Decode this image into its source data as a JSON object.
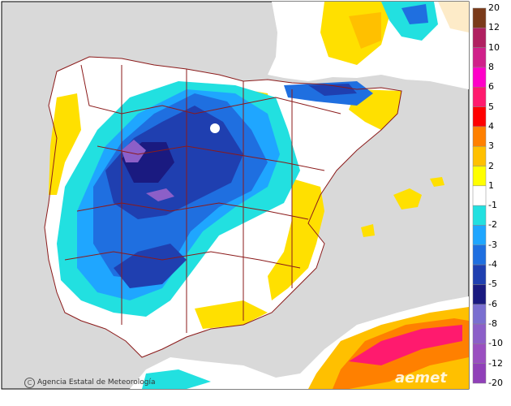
{
  "map": {
    "credit_symbol": "C",
    "credit_text": "Agencia Estatal de Meteorología",
    "brand_text": "aemet",
    "colors": {
      "sea": "#d9d9d9",
      "land_neutral": "#ffffff",
      "border": "#8b1a1a"
    }
  },
  "legend": {
    "ticks": [
      "20",
      "12",
      "10",
      "8",
      "6",
      "5",
      "4",
      "3",
      "2",
      "1",
      "-1",
      "-2",
      "-3",
      "-4",
      "-5",
      "-6",
      "-8",
      "-10",
      "-12",
      "-20"
    ],
    "colors": [
      "#7a3a1a",
      "#b02060",
      "#d0208a",
      "#ff00c8",
      "#ff1a6e",
      "#ff0000",
      "#ff8000",
      "#ffc000",
      "#ffff00",
      "#ffffff",
      "#22e0e0",
      "#1fa6ff",
      "#1f6fe0",
      "#1f3fb0",
      "#1a1a80",
      "#7a6fd0",
      "#8c5fc8",
      "#9a4fc0",
      "#9040b8"
    ]
  }
}
